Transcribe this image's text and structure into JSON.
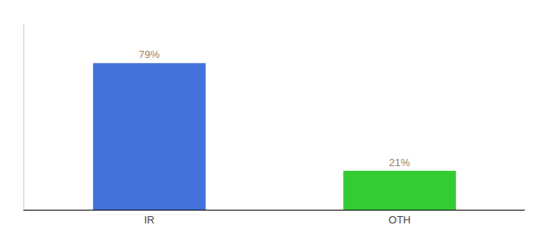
{
  "chart_data": {
    "type": "bar",
    "categories": [
      "IR",
      "OTH"
    ],
    "values": [
      79,
      21
    ],
    "colors": [
      "#4472db",
      "#33cc33"
    ],
    "data_labels": true,
    "value_labels": [
      "79%",
      "21%"
    ],
    "ylim": [
      0,
      100
    ],
    "tick_labels": "x",
    "grid": false
  }
}
